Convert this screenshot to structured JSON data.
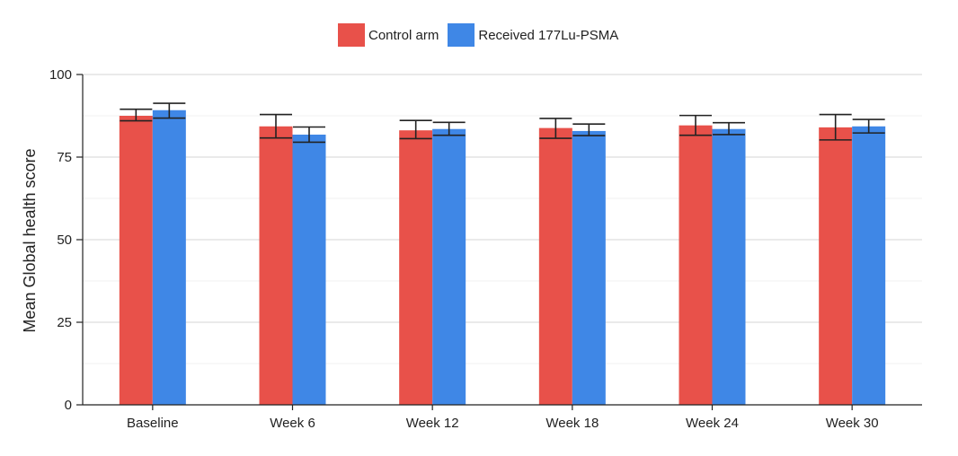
{
  "chart_data": {
    "type": "bar",
    "title": "",
    "xlabel": "",
    "ylabel": "Mean Global health score",
    "ylim": [
      0,
      100
    ],
    "yticks": [
      0,
      25,
      50,
      75,
      100
    ],
    "categories": [
      "Baseline",
      "Week 6",
      "Week 12",
      "Week 18",
      "Week 24",
      "Week 30"
    ],
    "series": [
      {
        "name": "Control arm",
        "color": "#e8514a",
        "values": [
          87.5,
          84.3,
          83.1,
          83.8,
          84.6,
          84.0
        ],
        "err_low": [
          86.0,
          80.8,
          80.6,
          80.7,
          81.6,
          80.2
        ],
        "err_high": [
          89.5,
          87.9,
          86.1,
          86.7,
          87.6,
          87.9
        ]
      },
      {
        "name": "Received 177Lu-PSMA",
        "color": "#3f87e6",
        "values": [
          89.2,
          81.8,
          83.5,
          82.9,
          83.5,
          84.3
        ],
        "err_low": [
          86.8,
          79.5,
          81.6,
          81.5,
          81.8,
          82.3
        ],
        "err_high": [
          91.3,
          84.1,
          85.5,
          85.0,
          85.4,
          86.4
        ]
      }
    ],
    "grid": true,
    "legend_position": "top-center"
  }
}
